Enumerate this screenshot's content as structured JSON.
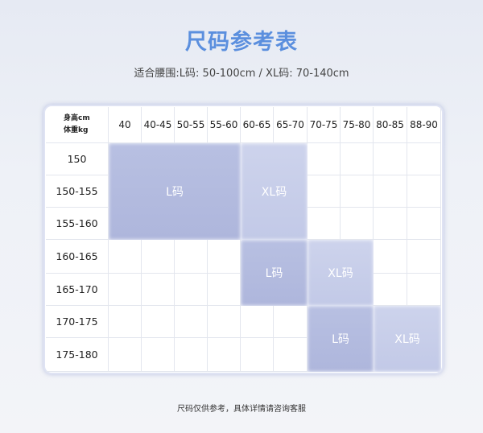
{
  "title": "尺码参考表",
  "subtitle": "适合腰围:L码: 50-100cm / XL码: 70-140cm",
  "corner": {
    "height": "身高cm",
    "weight": "体重kg"
  },
  "columns": [
    "40",
    "40-45",
    "50-55",
    "55-60",
    "60-65",
    "65-70",
    "70-75",
    "75-80",
    "80-85",
    "88-90"
  ],
  "rows": [
    "150",
    "150-155",
    "155-160",
    "160-165",
    "165-170",
    "170-175",
    "175-180"
  ],
  "blocks": [
    {
      "label": "L码",
      "type": "L",
      "rows": [
        0,
        2
      ],
      "cols": [
        0,
        3
      ]
    },
    {
      "label": "XL码",
      "type": "XL",
      "rows": [
        0,
        2
      ],
      "cols": [
        4,
        5
      ]
    },
    {
      "label": "L码",
      "type": "L",
      "rows": [
        3,
        4
      ],
      "cols": [
        4,
        5
      ]
    },
    {
      "label": "XL码",
      "type": "XL",
      "rows": [
        3,
        4
      ],
      "cols": [
        6,
        7
      ]
    },
    {
      "label": "L码",
      "type": "L",
      "rows": [
        5,
        6
      ],
      "cols": [
        6,
        7
      ]
    },
    {
      "label": "XL码",
      "type": "XL",
      "rows": [
        5,
        6
      ],
      "cols": [
        8,
        9
      ]
    }
  ],
  "colors": {
    "title": "#5b8fde",
    "L": "#b4bce0",
    "XL": "#c9d0ea"
  },
  "footer": "尺码仅供参考，具体详情请咨询客服"
}
